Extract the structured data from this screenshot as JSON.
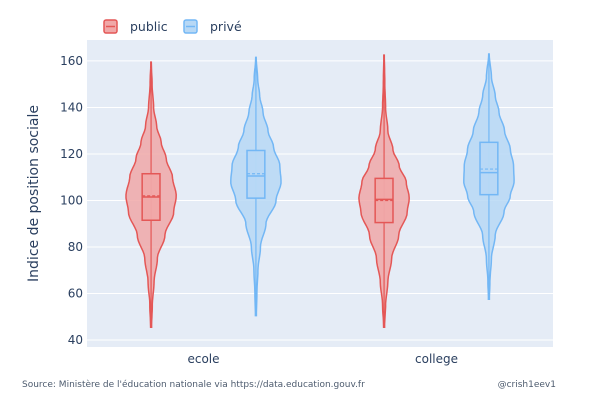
{
  "chart_data": {
    "type": "violin",
    "title": "",
    "xlabel": "",
    "ylabel": "Indice de position sociale",
    "ylim": [
      37,
      169
    ],
    "yticks": [
      40,
      60,
      80,
      100,
      120,
      140,
      160
    ],
    "grid": true,
    "legend_position": "top-left",
    "categories": [
      "ecole",
      "college"
    ],
    "series": [
      {
        "name": "public",
        "color": "#e45756",
        "fill": "#f0a8a8",
        "groups": [
          {
            "category": "ecole",
            "min": 45.5,
            "q1": 91.5,
            "median": 101.5,
            "mean": 102,
            "q3": 111.5,
            "max": 159.5,
            "density": [
              [
                46,
                0.02
              ],
              [
                55,
                0.05
              ],
              [
                65,
                0.12
              ],
              [
                75,
                0.25
              ],
              [
                85,
                0.55
              ],
              [
                95,
                0.9
              ],
              [
                102,
                1.0
              ],
              [
                110,
                0.85
              ],
              [
                118,
                0.6
              ],
              [
                125,
                0.4
              ],
              [
                132,
                0.22
              ],
              [
                140,
                0.1
              ],
              [
                150,
                0.04
              ],
              [
                159.5,
                0.01
              ]
            ]
          },
          {
            "category": "college",
            "min": 45.5,
            "q1": 90.5,
            "median": 100.5,
            "mean": 100,
            "q3": 109.5,
            "max": 162.5,
            "density": [
              [
                46,
                0.02
              ],
              [
                55,
                0.06
              ],
              [
                65,
                0.15
              ],
              [
                75,
                0.3
              ],
              [
                85,
                0.58
              ],
              [
                95,
                0.92
              ],
              [
                101,
                1.0
              ],
              [
                108,
                0.88
              ],
              [
                115,
                0.6
              ],
              [
                122,
                0.35
              ],
              [
                130,
                0.15
              ],
              [
                140,
                0.06
              ],
              [
                150,
                0.03
              ],
              [
                162.5,
                0.01
              ]
            ]
          }
        ]
      },
      {
        "name": "privé",
        "color": "#73b7f5",
        "fill": "#b7d8f5",
        "groups": [
          {
            "category": "ecole",
            "min": 50.5,
            "q1": 101,
            "median": 110.5,
            "mean": 111.5,
            "q3": 121.5,
            "max": 161.5,
            "density": [
              [
                51,
                0.02
              ],
              [
                60,
                0.04
              ],
              [
                70,
                0.08
              ],
              [
                80,
                0.18
              ],
              [
                90,
                0.4
              ],
              [
                100,
                0.8
              ],
              [
                108,
                1.0
              ],
              [
                115,
                0.95
              ],
              [
                123,
                0.7
              ],
              [
                130,
                0.48
              ],
              [
                138,
                0.28
              ],
              [
                145,
                0.15
              ],
              [
                152,
                0.07
              ],
              [
                161.5,
                0.01
              ]
            ]
          },
          {
            "category": "college",
            "min": 57.5,
            "q1": 102.5,
            "median": 112,
            "mean": 113.5,
            "q3": 125,
            "max": 163,
            "density": [
              [
                58,
                0.02
              ],
              [
                65,
                0.04
              ],
              [
                75,
                0.1
              ],
              [
                85,
                0.25
              ],
              [
                95,
                0.6
              ],
              [
                102,
                0.85
              ],
              [
                108,
                1.0
              ],
              [
                115,
                0.98
              ],
              [
                122,
                0.85
              ],
              [
                130,
                0.62
              ],
              [
                138,
                0.4
              ],
              [
                145,
                0.25
              ],
              [
                153,
                0.1
              ],
              [
                163,
                0.01
              ]
            ]
          }
        ]
      }
    ]
  },
  "footer": {
    "source": "Source: Ministère de l'éducation nationale via https://data.education.gouv.fr",
    "credit": "@crish1eev1"
  }
}
